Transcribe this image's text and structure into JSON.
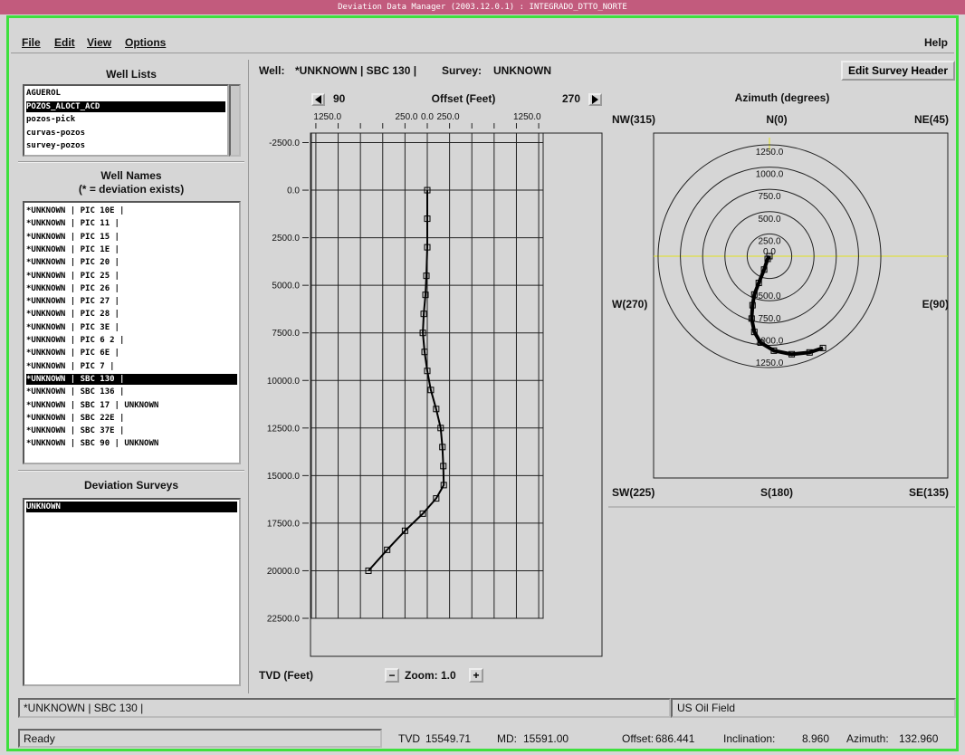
{
  "window": {
    "title": "Deviation Data Manager (2003.12.0.1) : INTEGRADO_DTTO_NORTE"
  },
  "menu": {
    "items": [
      "File",
      "Edit",
      "View",
      "Options"
    ],
    "help": "Help"
  },
  "well_lists": {
    "title": "Well Lists",
    "items": [
      "AGUEROL",
      "POZOS_ALOCT_ACD",
      "pozos-pick",
      "curvas-pozos",
      "survey-pozos"
    ],
    "selected": 1
  },
  "well_names": {
    "title": "Well Names",
    "subtitle": "(* = deviation exists)",
    "items": [
      "*UNKNOWN | PIC 10E |",
      "*UNKNOWN | PIC 11 |",
      "*UNKNOWN | PIC 15 |",
      "*UNKNOWN | PIC 1E |",
      "*UNKNOWN | PIC 20 |",
      "*UNKNOWN | PIC 25 |",
      "*UNKNOWN | PIC 26 |",
      "*UNKNOWN | PIC 27 |",
      "*UNKNOWN | PIC 28 |",
      "*UNKNOWN | PIC 3E |",
      "*UNKNOWN | PIC 6 2 |",
      "*UNKNOWN | PIC 6E |",
      "*UNKNOWN | PIC 7 |",
      "*UNKNOWN | SBC 130 |",
      "*UNKNOWN | SBC 136 |",
      "*UNKNOWN | SBC 17 | UNKNOWN",
      "*UNKNOWN | SBC 22E |",
      "*UNKNOWN | SBC 37E |",
      "*UNKNOWN | SBC 90 | UNKNOWN"
    ],
    "selected": 13
  },
  "deviation_surveys": {
    "title": "Deviation Surveys",
    "items": [
      "UNKNOWN"
    ],
    "selected": 0
  },
  "header": {
    "well_label": "Well:",
    "well": "*UNKNOWN | SBC 130 |",
    "survey_label": "Survey:",
    "survey": "UNKNOWN",
    "button": "Edit Survey Header"
  },
  "section_plot": {
    "type": "line",
    "title": "Offset (Feet)",
    "left_azimuth": "90",
    "right_azimuth": "270",
    "y_label": "TVD (Feet)",
    "zoom": "Zoom: 1.0",
    "color": "#000000",
    "xlim": [
      -1300,
      1300
    ],
    "xticks": [
      {
        "value": -1250,
        "label": "1250.0"
      },
      {
        "value": -250,
        "label": "250.0"
      },
      {
        "value": 0,
        "label": "0.0"
      },
      {
        "value": 250,
        "label": "250.0"
      },
      {
        "value": 1250,
        "label": "1250.0"
      }
    ],
    "xgrid": [
      -1250,
      -1000,
      -750,
      -500,
      -250,
      0,
      250,
      500,
      750,
      1000,
      1250
    ],
    "ylim": [
      -3000,
      22500
    ],
    "yticks": [
      {
        "value": -2500,
        "label": "-2500.0"
      },
      {
        "value": 0,
        "label": "0.0"
      },
      {
        "value": 2500,
        "label": "2500.0"
      },
      {
        "value": 5000,
        "label": "5000.0"
      },
      {
        "value": 7500,
        "label": "7500.0"
      },
      {
        "value": 10000,
        "label": "10000.0"
      },
      {
        "value": 12500,
        "label": "12500.0"
      },
      {
        "value": 15000,
        "label": "15000.0"
      },
      {
        "value": 17500,
        "label": "17500.0"
      },
      {
        "value": 20000,
        "label": "20000.0"
      },
      {
        "value": 22500,
        "label": "22500.0"
      }
    ],
    "offset": [
      0,
      0,
      0,
      -10,
      -20,
      -40,
      -50,
      -30,
      0,
      40,
      100,
      150,
      170,
      180,
      185,
      100,
      -50,
      -250,
      -450,
      -660
    ],
    "tvd": [
      0,
      1500,
      3000,
      4500,
      5500,
      6500,
      7500,
      8500,
      9500,
      10500,
      11500,
      12500,
      13500,
      14500,
      15500,
      16200,
      17000,
      17900,
      18900,
      20000
    ]
  },
  "plan_plot": {
    "type": "polar",
    "title": "Azimuth (degrees)",
    "color": "#000000",
    "directions": {
      "nw": "NW(315)",
      "n": "N(0)",
      "ne": "NE(45)",
      "w": "W(270)",
      "e": "E(90)",
      "sw": "SW(225)",
      "s": "S(180)",
      "se": "SE(135)"
    },
    "rlim": 1280,
    "rings": [
      {
        "value": 0,
        "label": "0.0"
      },
      {
        "value": 250,
        "label": "250.0"
      },
      {
        "value": 500,
        "label": "500.0"
      },
      {
        "value": 750,
        "label": "750.0"
      },
      {
        "value": 1000,
        "label": "1000.0"
      },
      {
        "value": 1250,
        "label": "1250.0"
      }
    ],
    "east": [
      0,
      -20,
      -60,
      -120,
      -170,
      -190,
      -200,
      -170,
      -100,
      50,
      250,
      450,
      600
    ],
    "north": [
      0,
      -30,
      -150,
      -300,
      -430,
      -550,
      -700,
      -850,
      -970,
      -1060,
      -1100,
      -1080,
      -1030
    ]
  },
  "status": {
    "well": "*UNKNOWN | SBC 130 |",
    "field": "US Oil Field",
    "message": "Ready",
    "readouts": [
      {
        "label": "TVD",
        "value": "15549.71"
      },
      {
        "label": "MD:",
        "value": "15591.00"
      },
      {
        "label": "Offset:",
        "value": "686.441"
      },
      {
        "label": "Inclination:",
        "value": "8.960"
      },
      {
        "label": "Azimuth:",
        "value": "132.960"
      }
    ]
  }
}
